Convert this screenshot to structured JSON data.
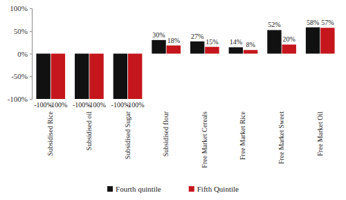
{
  "chart_data": {
    "type": "bar",
    "categories": [
      "Subsidised Rice",
      "Subsidised oil",
      "Subsidised Sugar",
      "Subsidised flour",
      "Free Market Cereals",
      "Free Market Rice",
      "Free Market Sweet",
      "Free Market Oil"
    ],
    "series": [
      {
        "name": "Fourth quintile",
        "color": "#111111",
        "values": [
          -100,
          -100,
          -100,
          30,
          27,
          14,
          52,
          58
        ],
        "value_labels": [
          "-100%",
          "-100%",
          "-100%",
          "30%",
          "27%",
          "14%",
          "52%",
          "58%"
        ]
      },
      {
        "name": "Fifth Quintile",
        "color": "#c4161c",
        "values": [
          -100,
          -100,
          -100,
          18,
          15,
          8,
          20,
          57
        ],
        "value_labels": [
          "-100%",
          "-100%",
          "-100%",
          "18%",
          "15%",
          "8%",
          "20%",
          "57%"
        ]
      }
    ],
    "ylim": [
      -100,
      100
    ],
    "yticks": [
      {
        "value": -100,
        "label": "-100%"
      },
      {
        "value": -50,
        "label": "-50%"
      },
      {
        "value": 0,
        "label": "0%"
      },
      {
        "value": 50,
        "label": "50%"
      },
      {
        "value": 100,
        "label": "100%"
      }
    ],
    "grid": false,
    "legend": "bottom",
    "data_labels": true
  }
}
